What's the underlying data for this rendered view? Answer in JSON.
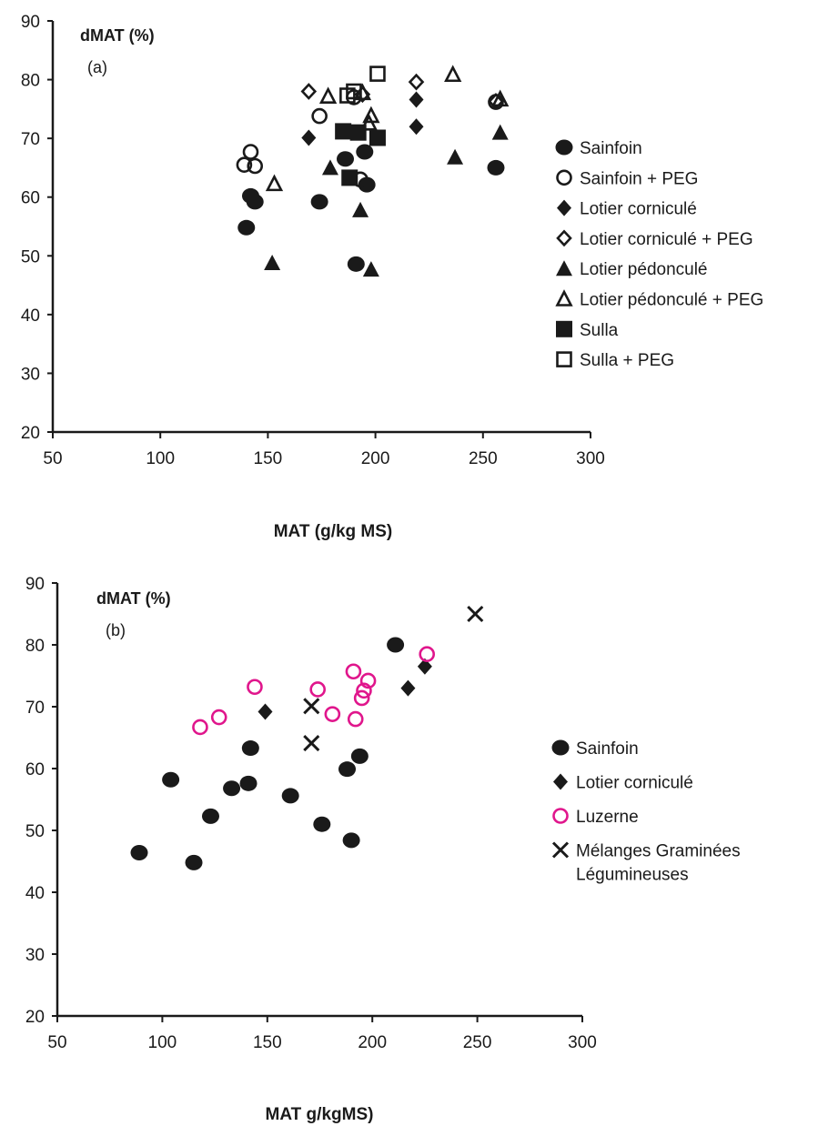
{
  "chart_data": [
    {
      "type": "scatter",
      "panel_label": "(a)",
      "ylabel": "dMAT (%)",
      "xlabel": "MAT (g/kg MS)",
      "xlim": [
        50,
        300
      ],
      "ylim": [
        20,
        90
      ],
      "x_ticks": [
        "50",
        "100",
        "150",
        "200",
        "250",
        "300"
      ],
      "y_ticks": [
        "20",
        "30",
        "40",
        "50",
        "60",
        "70",
        "80",
        "90"
      ],
      "legend_position": "right",
      "series": [
        {
          "name": "Sainfoin",
          "marker": "circle-filled",
          "points": [
            [
              140,
              54.8
            ],
            [
              142,
              60.2
            ],
            [
              144,
              59.2
            ],
            [
              174,
              59.2
            ],
            [
              186,
              66.5
            ],
            [
              191,
              48.6
            ],
            [
              195,
              67.7
            ],
            [
              196,
              62.1
            ],
            [
              256,
              65
            ]
          ]
        },
        {
          "name": "Sainfoin + PEG",
          "marker": "circle-open",
          "points": [
            [
              139,
              65.5
            ],
            [
              142,
              67.7
            ],
            [
              144,
              65.3
            ],
            [
              174,
              73.8
            ],
            [
              190,
              77
            ],
            [
              193,
              63
            ],
            [
              256,
              76.2
            ]
          ]
        },
        {
          "name": "Lotier corniculé",
          "marker": "diamond-filled",
          "points": [
            [
              169,
              70.1
            ],
            [
              219,
              72
            ],
            [
              219,
              76.6
            ]
          ]
        },
        {
          "name": "Lotier corniculé + PEG",
          "marker": "diamond-open",
          "points": [
            [
              169,
              78
            ],
            [
              194,
              77.5
            ],
            [
              219,
              79.6
            ],
            [
              256,
              76.3
            ]
          ]
        },
        {
          "name": "Lotier pédonculé",
          "marker": "triangle-filled",
          "points": [
            [
              152,
              48.8
            ],
            [
              179,
              65
            ],
            [
              193,
              57.8
            ],
            [
              198,
              47.7
            ],
            [
              237,
              66.8
            ],
            [
              258,
              71
            ]
          ]
        },
        {
          "name": "Lotier pédonculé + PEG",
          "marker": "triangle-open",
          "points": [
            [
              153,
              62.3
            ],
            [
              178,
              77.2
            ],
            [
              194,
              77.8
            ],
            [
              197,
              72.6
            ],
            [
              198,
              73.9
            ],
            [
              236,
              80.9
            ],
            [
              258,
              76.7
            ]
          ]
        },
        {
          "name": "Sulla",
          "marker": "square-filled",
          "points": [
            [
              185,
              71.2
            ],
            [
              188,
              63.3
            ],
            [
              192,
              71
            ],
            [
              201,
              70.1
            ]
          ]
        },
        {
          "name": "Sulla + PEG",
          "marker": "square-open",
          "points": [
            [
              187,
              77.3
            ],
            [
              190,
              78
            ],
            [
              201,
              81
            ]
          ]
        }
      ]
    },
    {
      "type": "scatter",
      "panel_label": "(b)",
      "ylabel": "dMAT (%)",
      "xlabel": "MAT g/kgMS)",
      "xlim": [
        50,
        300
      ],
      "ylim": [
        20,
        90
      ],
      "x_ticks": [
        "50",
        "100",
        "150",
        "200",
        "250",
        "300"
      ],
      "y_ticks": [
        "20",
        "30",
        "40",
        "50",
        "60",
        "70",
        "80",
        "90"
      ],
      "legend_position": "right",
      "series": [
        {
          "name": "Sainfoin",
          "marker": "circle-filled",
          "points": [
            [
              89,
              46.4
            ],
            [
              104,
              58.2
            ],
            [
              115,
              44.8
            ],
            [
              123,
              52.3
            ],
            [
              133,
              56.8
            ],
            [
              141,
              57.6
            ],
            [
              142,
              63.3
            ],
            [
              161,
              55.6
            ],
            [
              176,
              51
            ],
            [
              188,
              59.9
            ],
            [
              190,
              48.4
            ],
            [
              194,
              62
            ],
            [
              211,
              80
            ]
          ]
        },
        {
          "name": "Lotier corniculé",
          "marker": "diamond-filled",
          "points": [
            [
              149,
              69.2
            ],
            [
              217,
              73
            ],
            [
              225,
              76.5
            ]
          ]
        },
        {
          "name": "Luzerne",
          "marker": "circle-open-magenta",
          "points": [
            [
              118,
              66.7
            ],
            [
              127,
              68.3
            ],
            [
              144,
              73.2
            ],
            [
              174,
              72.8
            ],
            [
              181,
              68.8
            ],
            [
              191,
              75.7
            ],
            [
              192,
              68
            ],
            [
              195,
              71.4
            ],
            [
              196,
              72.6
            ],
            [
              198,
              74.2
            ],
            [
              226,
              78.5
            ]
          ]
        },
        {
          "name": "Mélanges Graminées Légumineuses",
          "name_lines": [
            "Mélanges Graminées",
            "Légumineuses"
          ],
          "marker": "cross",
          "points": [
            [
              171,
              64.1
            ],
            [
              171,
              70.1
            ],
            [
              249,
              85
            ]
          ]
        }
      ]
    }
  ],
  "colors": {
    "ink": "#1a1a1a",
    "luzerne": "#e0168c"
  }
}
